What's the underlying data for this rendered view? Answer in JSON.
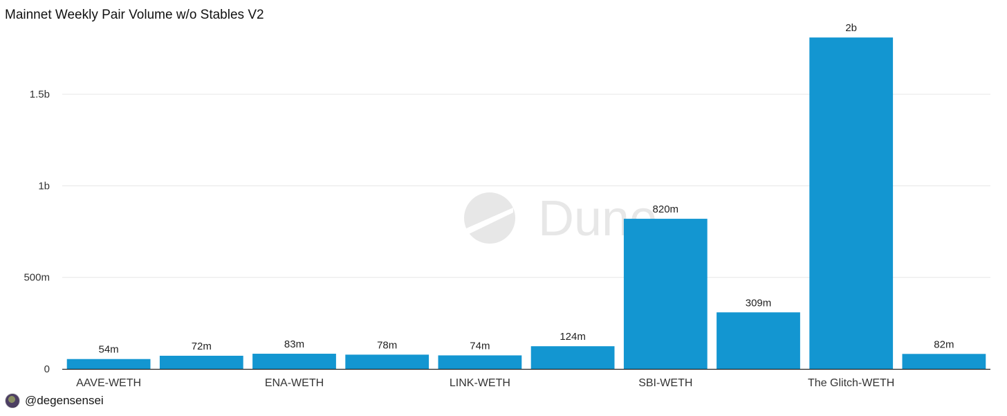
{
  "chart_data": {
    "type": "bar",
    "title": "Mainnet Weekly Pair Volume w/o Stables V2",
    "categories": [
      "AAVE-WETH",
      "",
      "ENA-WETH",
      "",
      "LINK-WETH",
      "",
      "SBI-WETH",
      "",
      "The Glitch-WETH",
      ""
    ],
    "values": [
      54000000,
      72000000,
      83000000,
      78000000,
      74000000,
      124000000,
      820000000,
      309000000,
      1810000000,
      82000000
    ],
    "data_labels": [
      "54m",
      "72m",
      "83m",
      "78m",
      "74m",
      "124m",
      "820m",
      "309m",
      "2b",
      "82m"
    ],
    "y_ticks": [
      0,
      500000000,
      1000000000,
      1500000000
    ],
    "y_tick_labels": [
      "0",
      "500m",
      "1b",
      "1.5b"
    ],
    "ylim": [
      0,
      1890000000
    ],
    "xlabel": "",
    "ylabel": "",
    "grid": true,
    "legend": "none",
    "bar_color": "#1396d1"
  },
  "watermark": {
    "text": "Dune",
    "icon": "dune-logo-icon"
  },
  "footer": {
    "avatar_icon": "avatar-icon",
    "handle": "@degensensei"
  }
}
